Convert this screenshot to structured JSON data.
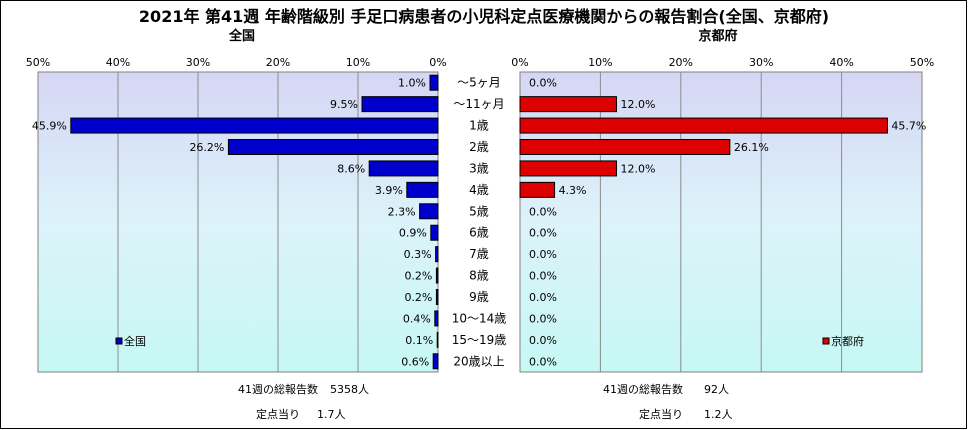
{
  "chart_data": {
    "type": "bar",
    "orientation": "horizontal-butterfly",
    "title": "2021年 第41週 年齢階級別 手足口病患者の小児科定点医療機関からの報告割合(全国、京都府)",
    "categories": [
      "～5ヶ月",
      "～11ヶ月",
      "1歳",
      "2歳",
      "3歳",
      "4歳",
      "5歳",
      "6歳",
      "7歳",
      "8歳",
      "9歳",
      "10～14歳",
      "15～19歳",
      "20歳以上"
    ],
    "xlim": [
      0,
      50
    ],
    "ticks": [
      "0%",
      "10%",
      "20%",
      "30%",
      "40%",
      "50%"
    ],
    "grid": true,
    "series": [
      {
        "name": "全国",
        "side": "left",
        "color": "#0000cc",
        "values": [
          1.0,
          9.5,
          45.9,
          26.2,
          8.6,
          3.9,
          2.3,
          0.9,
          0.3,
          0.2,
          0.2,
          0.4,
          0.1,
          0.6
        ],
        "labels": [
          "1.0%",
          "9.5%",
          "45.9%",
          "26.2%",
          "8.6%",
          "3.9%",
          "2.3%",
          "0.9%",
          "0.3%",
          "0.2%",
          "0.2%",
          "0.4%",
          "0.1%",
          "0.6%"
        ],
        "legend": "全国"
      },
      {
        "name": "京都府",
        "side": "right",
        "color": "#dd0000",
        "values": [
          0.0,
          12.0,
          45.7,
          26.1,
          12.0,
          4.3,
          0.0,
          0.0,
          0.0,
          0.0,
          0.0,
          0.0,
          0.0,
          0.0
        ],
        "labels": [
          "0.0%",
          "12.0%",
          "45.7%",
          "26.1%",
          "12.0%",
          "4.3%",
          "0.0%",
          "0.0%",
          "0.0%",
          "0.0%",
          "0.0%",
          "0.0%",
          "0.0%",
          "0.0%"
        ],
        "legend": "京都府"
      }
    ],
    "footer": {
      "left": {
        "total_label": "41週の総報告数",
        "total_value": "5358人",
        "per_label": "定点当り",
        "per_value": "1.7人"
      },
      "right": {
        "total_label": "41週の総報告数",
        "total_value": "92人",
        "per_label": "定点当り",
        "per_value": "1.2人"
      }
    }
  }
}
